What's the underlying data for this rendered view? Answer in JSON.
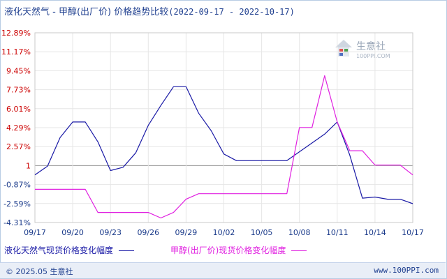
{
  "header": {
    "title": "液化天然气 - 甲醇(出厂价) 价格趋势比较",
    "date_range": "(2022-09-17 - 2022-10-17)"
  },
  "watermark": {
    "name": "生意社",
    "url": "100PPI.COM"
  },
  "legend": {
    "series1": "液化天然气现货价格变化幅度",
    "series2": "甲醇(出厂价)现货价格变化幅度"
  },
  "footer": {
    "copyright": "© 2025.05 生意社",
    "site": "www.100PPI.com"
  },
  "colors": {
    "series1": "#1a1aa6",
    "series2": "#e020e0",
    "tick_red": "#cc0000",
    "tick_blue": "#1a3a8a"
  },
  "chart_data": {
    "type": "line",
    "title": "液化天然气 - 甲醇(出厂价) 价格趋势比较",
    "ylim": [
      -4.31,
      12.89
    ],
    "y_ticks": [
      "12.89%",
      "11.17%",
      "9.45%",
      "7.73%",
      "6.01%",
      "4.29%",
      "2.57%",
      "1",
      "-0.87%",
      "-2.59%",
      "-4.31%"
    ],
    "y_tick_values": [
      12.89,
      11.17,
      9.45,
      7.73,
      6.01,
      4.29,
      2.57,
      0.85,
      -0.87,
      -2.59,
      -4.31
    ],
    "x_ticks": [
      "09/17",
      "09/20",
      "09/23",
      "09/26",
      "09/29",
      "10/02",
      "10/05",
      "10/08",
      "10/11",
      "10/14",
      "10/17"
    ],
    "x_tick_days": [
      0,
      3,
      6,
      9,
      12,
      15,
      18,
      21,
      24,
      27,
      30
    ],
    "series": [
      {
        "name": "液化天然气现货价格变化幅度",
        "x": [
          0,
          1,
          2,
          3,
          4,
          5,
          6,
          7,
          8,
          9,
          10,
          11,
          12,
          13,
          14,
          15,
          16,
          17,
          18,
          19,
          20,
          21,
          22,
          23,
          24,
          25,
          26,
          27,
          28,
          29,
          30
        ],
        "y": [
          0,
          0.8,
          3.4,
          4.8,
          4.8,
          3.0,
          0.4,
          0.7,
          2.0,
          4.5,
          6.3,
          8.0,
          8.0,
          5.6,
          4.0,
          1.9,
          1.3,
          1.3,
          1.3,
          1.3,
          1.3,
          2.1,
          2.9,
          3.7,
          4.8,
          1.8,
          -2.1,
          -2.0,
          -2.2,
          -2.2,
          -2.6
        ]
      },
      {
        "name": "甲醇(出厂价)现货价格变化幅度",
        "x": [
          0,
          1,
          2,
          3,
          4,
          5,
          6,
          7,
          8,
          9,
          10,
          11,
          12,
          13,
          14,
          15,
          16,
          17,
          18,
          19,
          20,
          21,
          22,
          23,
          24,
          25,
          26,
          27,
          28,
          29,
          30
        ],
        "y": [
          -1.3,
          -1.3,
          -1.3,
          -1.3,
          -1.3,
          -3.4,
          -3.4,
          -3.4,
          -3.4,
          -3.4,
          -3.9,
          -3.4,
          -2.2,
          -1.7,
          -1.7,
          -1.7,
          -1.7,
          -1.7,
          -1.7,
          -1.7,
          -1.7,
          4.3,
          4.3,
          9.0,
          4.8,
          2.2,
          2.2,
          0.9,
          0.9,
          0.9,
          0.0
        ]
      }
    ]
  }
}
